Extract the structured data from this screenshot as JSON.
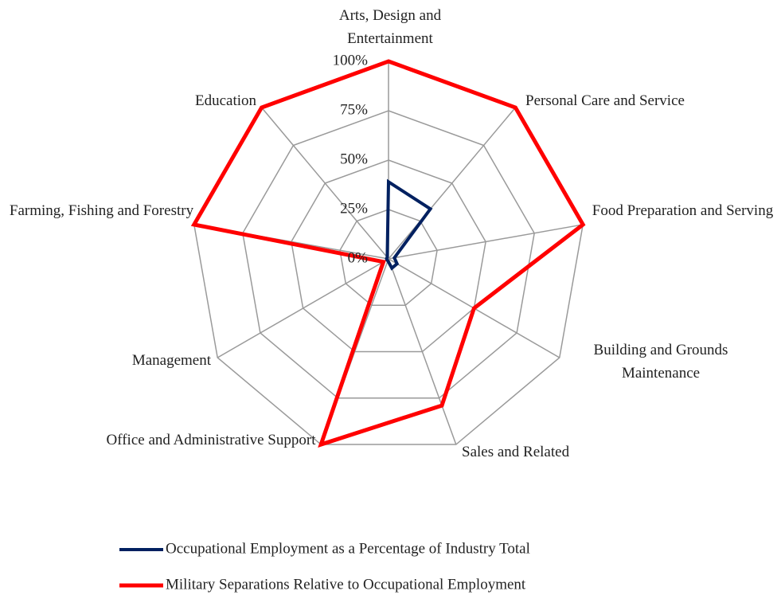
{
  "chart_data": {
    "type": "radar",
    "categories": [
      "Arts, Design and Entertainment",
      "Personal Care and Service",
      "Food Preparation  and Serving",
      "Building and Grounds Maintenance",
      "Sales and Related",
      "Office and Administrative Support",
      "Management",
      "Farming, Fishing and Forestry",
      "Education"
    ],
    "series": [
      {
        "name": "Occupational Employment as a Percentage  of Industry Total",
        "color": "#002060",
        "values": [
          39,
          33,
          3,
          5,
          5,
          1,
          1,
          1,
          1
        ]
      },
      {
        "name": "Military Separations Relative to Occupational Employment",
        "color": "#ff0000",
        "values": [
          100,
          100,
          100,
          50,
          79,
          100,
          3,
          100,
          100
        ]
      }
    ],
    "ylim": [
      0,
      100
    ],
    "yticks": [
      {
        "value": 0,
        "label": "0%"
      },
      {
        "value": 25,
        "label": "25%"
      },
      {
        "value": 50,
        "label": "50%"
      },
      {
        "value": 75,
        "label": "75%"
      },
      {
        "value": 100,
        "label": "100%"
      }
    ],
    "grid": true,
    "legend": "bottom"
  }
}
